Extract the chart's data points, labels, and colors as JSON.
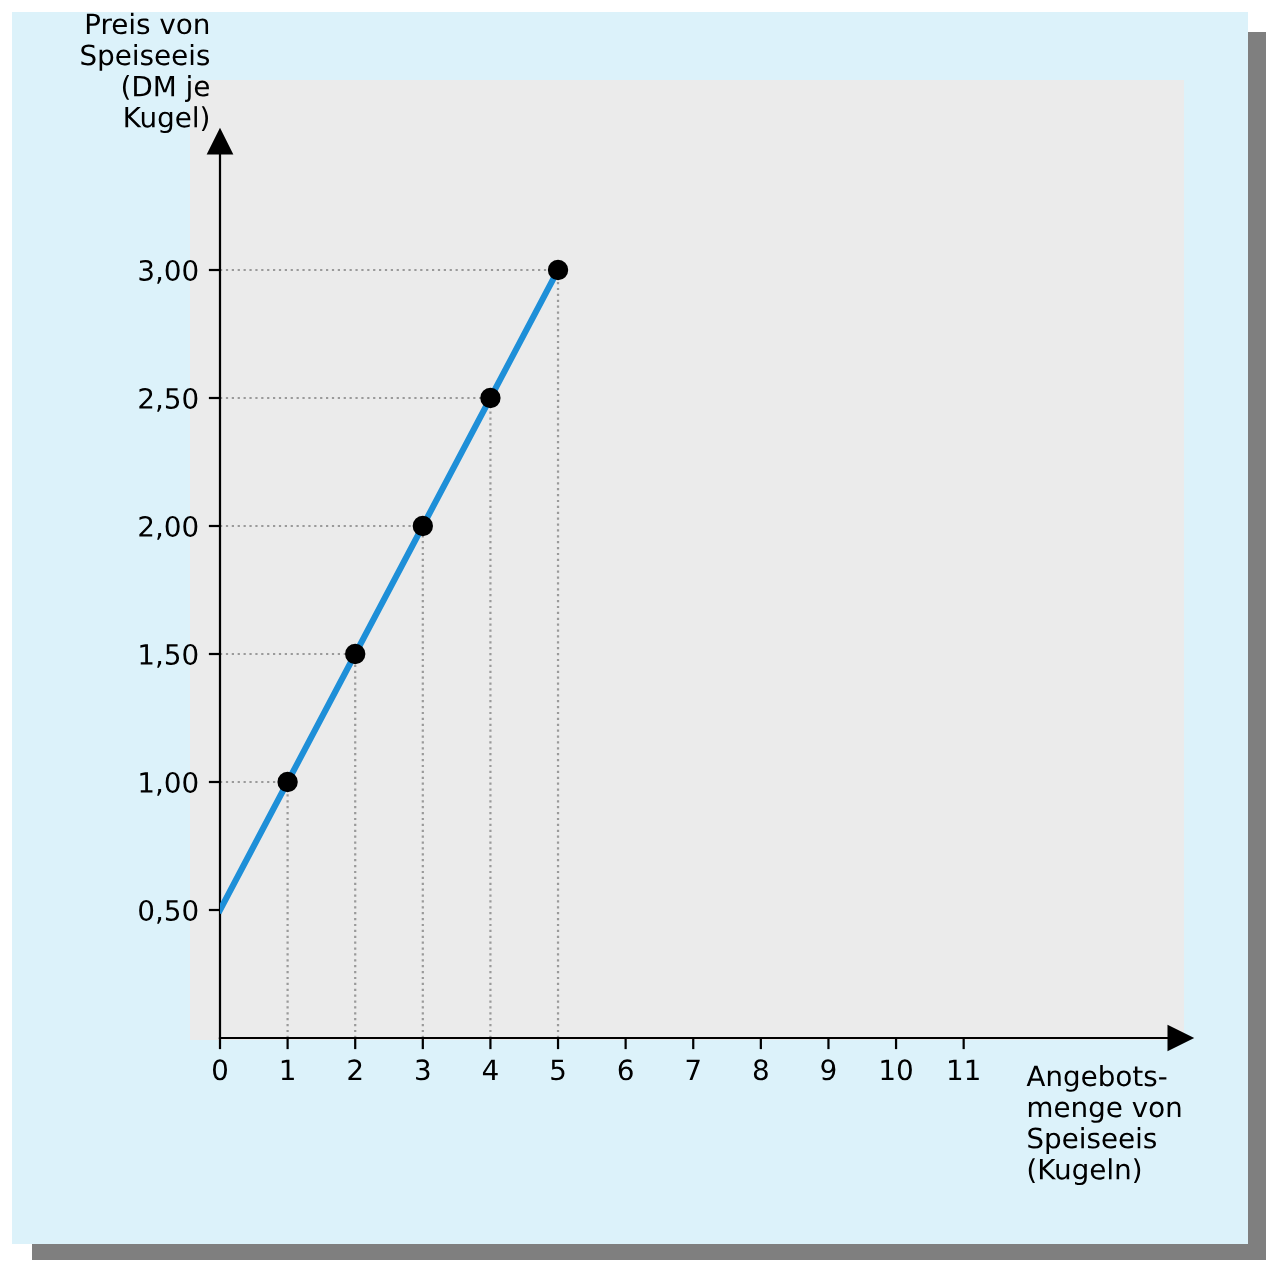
{
  "chart_data": {
    "type": "line",
    "xlabel": "Angebots-\nmenge von\nSpeiseeis\n(Kugeln)",
    "ylabel": "Preis von\nSpeiseeis\n(DM je\nKugel)",
    "series": [
      {
        "color": "#1e8fd8",
        "x": [
          0,
          1,
          2,
          3,
          4,
          5
        ],
        "values": [
          0.5,
          1.0,
          1.5,
          2.0,
          2.5,
          3.0
        ],
        "marker": "none",
        "line_style": "solid"
      },
      {
        "color": "#9a9a9a",
        "x": [
          1,
          1
        ],
        "values": [
          0,
          1.0
        ],
        "marker": "none",
        "line_style": "dotted"
      },
      {
        "color": "#9a9a9a",
        "x": [
          2,
          2
        ],
        "values": [
          0,
          1.5
        ],
        "marker": "none",
        "line_style": "dotted"
      },
      {
        "color": "#9a9a9a",
        "x": [
          3,
          3
        ],
        "values": [
          0,
          2.0
        ],
        "marker": "none",
        "line_style": "dotted"
      },
      {
        "color": "#9a9a9a",
        "x": [
          4,
          4
        ],
        "values": [
          0,
          2.5
        ],
        "marker": "none",
        "line_style": "dotted"
      },
      {
        "color": "#9a9a9a",
        "x": [
          5,
          5
        ],
        "values": [
          0,
          3.0
        ],
        "marker": "none",
        "line_style": "dotted"
      },
      {
        "color": "#9a9a9a",
        "x": [
          0,
          1
        ],
        "values": [
          1.0,
          1.0
        ],
        "marker": "none",
        "line_style": "dotted"
      },
      {
        "color": "#9a9a9a",
        "x": [
          0,
          2
        ],
        "values": [
          1.5,
          1.5
        ],
        "marker": "none",
        "line_style": "dotted"
      },
      {
        "color": "#9a9a9a",
        "x": [
          0,
          3
        ],
        "values": [
          2.0,
          2.0
        ],
        "marker": "none",
        "line_style": "dotted"
      },
      {
        "color": "#9a9a9a",
        "x": [
          0,
          4
        ],
        "values": [
          2.5,
          2.5
        ],
        "marker": "none",
        "line_style": "dotted"
      },
      {
        "color": "#9a9a9a",
        "x": [
          0,
          5
        ],
        "values": [
          3.0,
          3.0
        ],
        "marker": "none",
        "line_style": "dotted"
      },
      {
        "type": "scatter",
        "color": "#000000",
        "x": [
          1,
          2,
          3,
          4,
          5
        ],
        "values": [
          1.0,
          1.5,
          2.0,
          2.5,
          3.0
        ],
        "marker": "circle"
      }
    ],
    "xlim": [
      0,
      14.2
    ],
    "ylim": [
      0,
      3.5
    ],
    "xticks": [
      0,
      1,
      2,
      3,
      4,
      5,
      6,
      7,
      8,
      9,
      10,
      11
    ],
    "yticks": [
      {
        "value": 0.5,
        "label": "0,50"
      },
      {
        "value": 1.0,
        "label": "1,00"
      },
      {
        "value": 1.5,
        "label": "1,50"
      },
      {
        "value": 2.0,
        "label": "2,00"
      },
      {
        "value": 2.5,
        "label": "2,50"
      },
      {
        "value": 3.0,
        "label": "3,00"
      }
    ],
    "legend": false
  }
}
